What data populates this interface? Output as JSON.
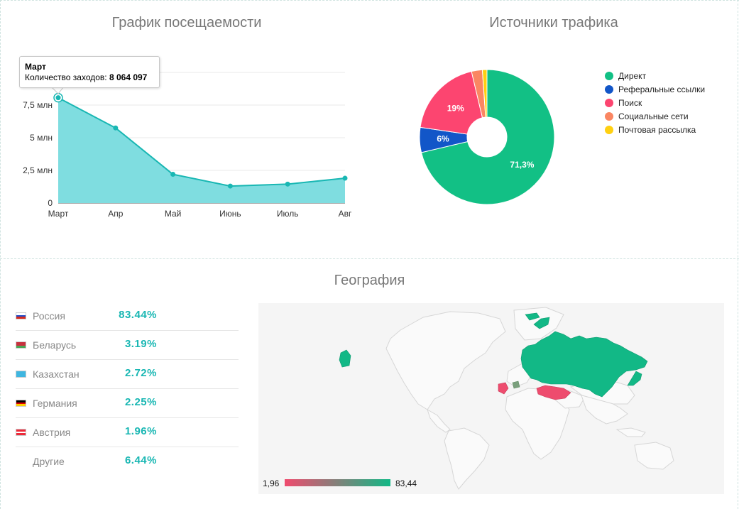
{
  "visits_panel": {
    "title": "График посещаемости",
    "tooltip": {
      "month": "Март",
      "label": "Количество заходов:",
      "value": "8 064 097"
    }
  },
  "traffic_panel": {
    "title": "Источники трафика"
  },
  "geo_panel": {
    "title": "География",
    "countries": [
      {
        "name": "Россия",
        "pct": "83.44%",
        "flag": [
          "#ffffff",
          "#1f4cc9",
          "#d52b1e"
        ]
      },
      {
        "name": "Беларусь",
        "pct": "3.19%",
        "flag": [
          "#c8313e",
          "#c8313e",
          "#4aa657"
        ]
      },
      {
        "name": "Казахстан",
        "pct": "2.72%",
        "flag": [
          "#3fb6e0",
          "#3fb6e0",
          "#3fb6e0"
        ]
      },
      {
        "name": "Германия",
        "pct": "2.25%",
        "flag": [
          "#000000",
          "#dd0000",
          "#ffce00"
        ]
      },
      {
        "name": "Австрия",
        "pct": "1.96%",
        "flag": [
          "#ed2939",
          "#ffffff",
          "#ed2939"
        ]
      },
      {
        "name": "Другие",
        "pct": "6.44%"
      }
    ],
    "scale": {
      "min": "1,96",
      "max": "83,44",
      "min_color": "#f04b6e",
      "max_color": "#12b886"
    }
  },
  "chart_data": [
    {
      "type": "area",
      "title": "График посещаемости",
      "categories": [
        "Март",
        "Апр",
        "Май",
        "Июнь",
        "Июль",
        "Авг"
      ],
      "series": [
        {
          "values": [
            8064097,
            5750000,
            2200000,
            1300000,
            1450000,
            1900000
          ]
        }
      ],
      "yticks": [
        "0",
        "2,5 млн",
        "5 млн",
        "7,5 млн"
      ],
      "ylim": [
        0,
        10000000
      ],
      "grid": true,
      "color": "#19b7b3",
      "fill": "#7fdde0"
    },
    {
      "type": "pie",
      "title": "Источники трафика",
      "donut": true,
      "slices": [
        {
          "label": "Директ",
          "value": 71.3,
          "display": "71,3%",
          "color": "#12c085"
        },
        {
          "label": "Реферальные ссылки",
          "value": 6,
          "display": "6%",
          "color": "#1256c8"
        },
        {
          "label": "Поиск",
          "value": 19,
          "display": "19%",
          "color": "#fc4570"
        },
        {
          "label": "Социальные сети",
          "value": 2.6,
          "display": "",
          "color": "#fa8662"
        },
        {
          "label": "Почтовая рассылка",
          "value": 1.1,
          "display": "",
          "color": "#ffd011"
        }
      ],
      "legend_position": "right"
    }
  ]
}
